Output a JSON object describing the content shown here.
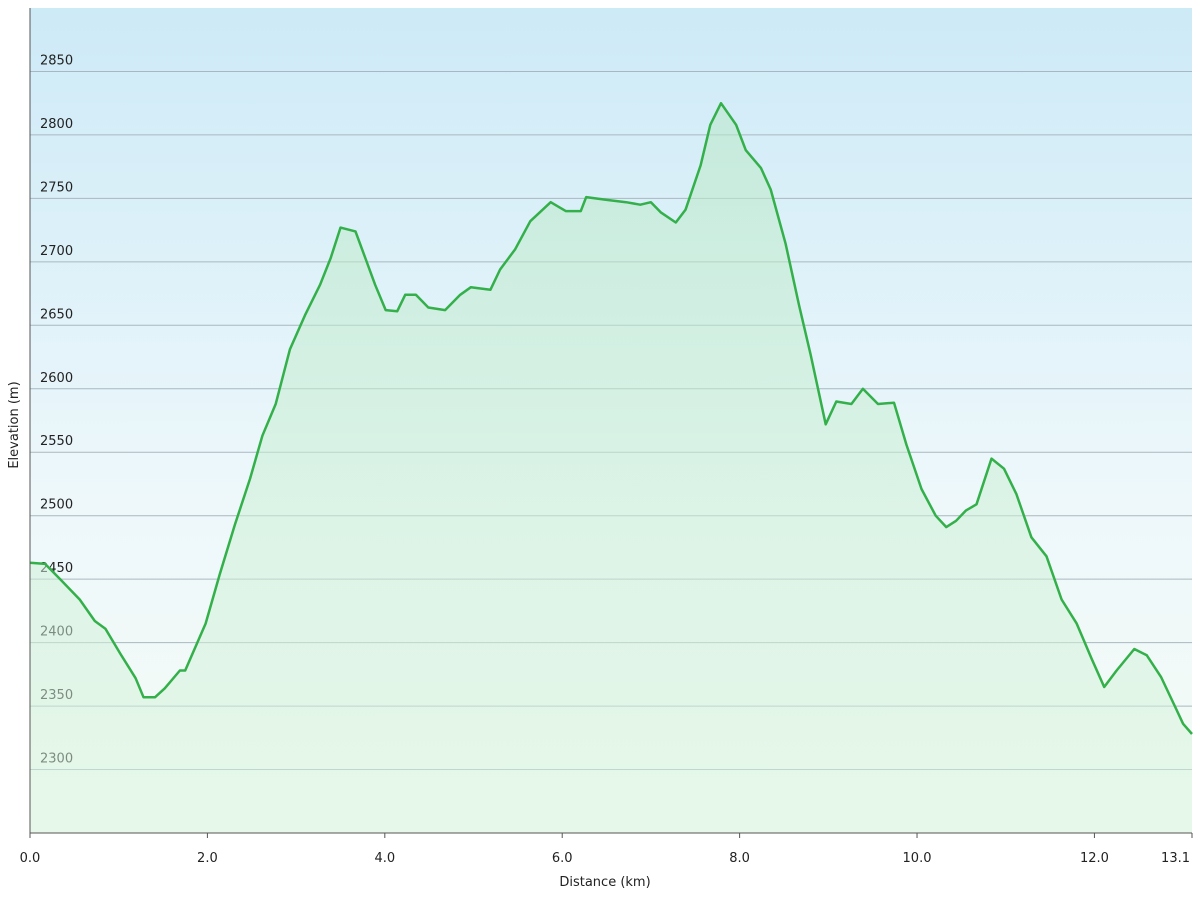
{
  "chart_data": {
    "type": "area",
    "x_label": "Distance  (km)",
    "y_label": "Elevation (m)",
    "color": "#33b04a",
    "x": [
      0,
      0.17,
      0.34,
      0.56,
      0.73,
      0.85,
      1.02,
      1.19,
      1.28,
      1.41,
      1.52,
      1.69,
      1.75,
      1.98,
      2.14,
      2.31,
      2.48,
      2.62,
      2.77,
      2.93,
      3.1,
      3.27,
      3.39,
      3.5,
      3.67,
      3.78,
      3.89,
      4.01,
      4.14,
      4.23,
      4.35,
      4.49,
      4.68,
      4.85,
      4.97,
      5.19,
      5.3,
      5.47,
      5.64,
      5.87,
      6.04,
      6.21,
      6.27,
      6.49,
      6.72,
      6.88,
      7.0,
      7.11,
      7.28,
      7.39,
      7.56,
      7.67,
      7.79,
      7.96,
      8.07,
      8.24,
      8.35,
      8.52,
      8.67,
      8.8,
      8.97,
      9.09,
      9.26,
      9.39,
      9.56,
      9.74,
      9.88,
      10.05,
      10.21,
      10.33,
      10.44,
      10.55,
      10.67,
      10.84,
      10.98,
      11.12,
      11.29,
      11.46,
      11.63,
      11.8,
      11.97,
      12.11,
      12.25,
      12.45,
      12.59,
      12.75,
      12.92,
      13.0,
      13.1
    ],
    "values": [
      2463,
      2462,
      2450,
      2434,
      2417,
      2411,
      2391,
      2372,
      2357,
      2357,
      2364,
      2378,
      2378,
      2415,
      2454,
      2493,
      2529,
      2563,
      2588,
      2631,
      2658,
      2682,
      2703,
      2727,
      2724,
      2703,
      2682,
      2662,
      2661,
      2674,
      2674,
      2664,
      2662,
      2674,
      2680,
      2678,
      2694,
      2710,
      2732,
      2747,
      2740,
      2740,
      2751,
      2749,
      2747,
      2745,
      2747,
      2739,
      2731,
      2741,
      2776,
      2808,
      2825,
      2808,
      2788,
      2774,
      2757,
      2714,
      2666,
      2627,
      2572,
      2590,
      2588,
      2600,
      2588,
      2589,
      2556,
      2521,
      2500,
      2491,
      2496,
      2504,
      2509,
      2545,
      2537,
      2517,
      2483,
      2468,
      2434,
      2415,
      2387,
      2365,
      2378,
      2395,
      2390,
      2373,
      2348,
      2336,
      2328
    ],
    "xlim": [
      0,
      13.1
    ],
    "ylim": [
      2250,
      2900
    ],
    "xticks": [
      {
        "value": 0,
        "label": "0.0"
      },
      {
        "value": 2,
        "label": "2.0"
      },
      {
        "value": 4,
        "label": "4.0"
      },
      {
        "value": 6,
        "label": "6.0"
      },
      {
        "value": 8,
        "label": "8.0"
      },
      {
        "value": 10,
        "label": "10.0"
      },
      {
        "value": 12,
        "label": "12.0"
      },
      13.1
    ],
    "yticks": [
      2300,
      2350,
      2400,
      2450,
      2500,
      2550,
      2600,
      2650,
      2700,
      2750,
      2800,
      2850
    ],
    "grid": true
  }
}
